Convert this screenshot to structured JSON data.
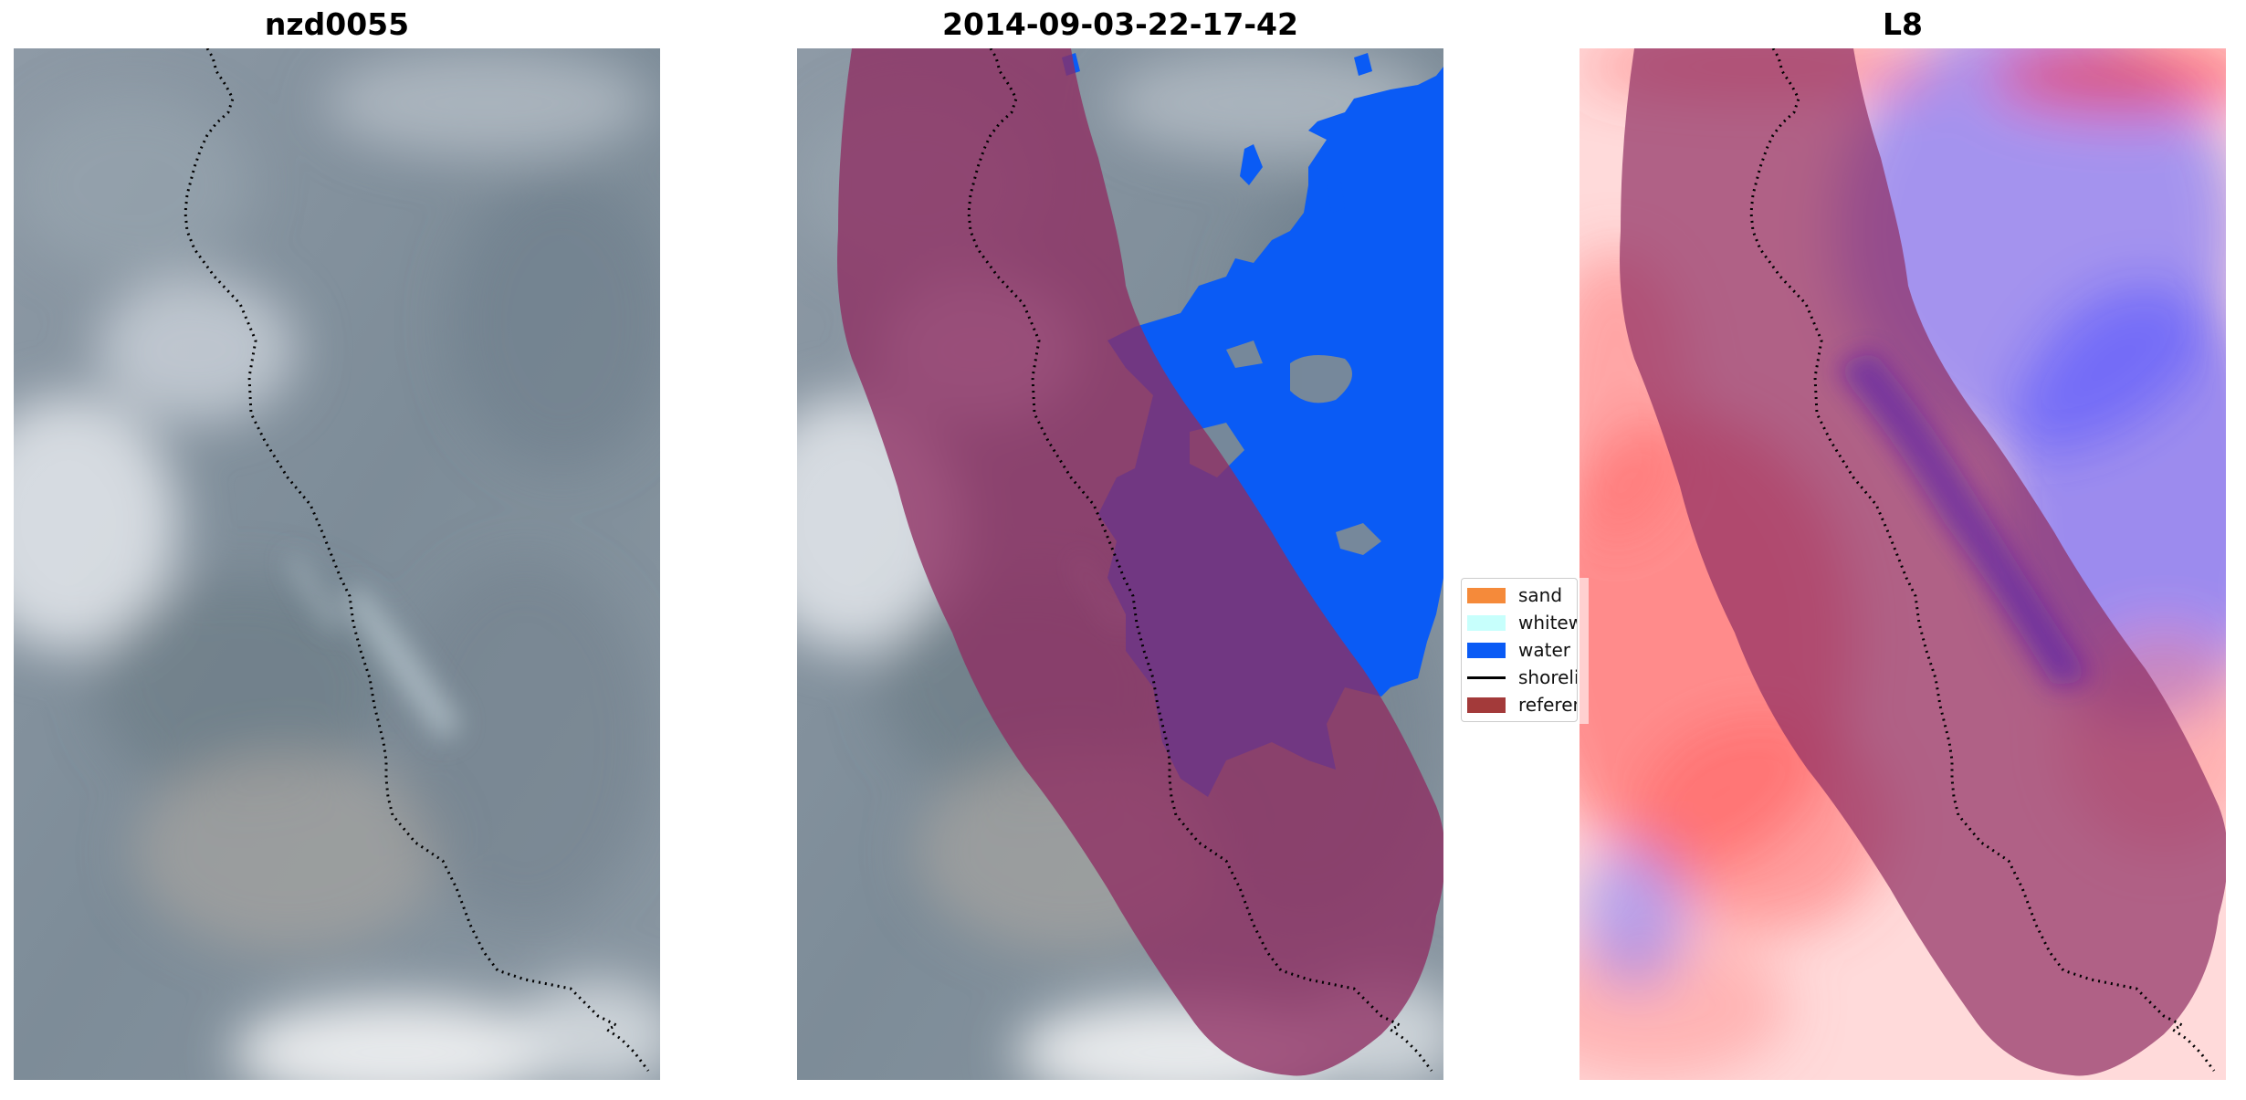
{
  "panels": [
    {
      "title": "nzd0055"
    },
    {
      "title": "2014-09-03-22-17-42"
    },
    {
      "title": "L8"
    }
  ],
  "legend": {
    "items": [
      {
        "label": "sand",
        "color": "#F58A3A",
        "kind": "patch"
      },
      {
        "label": "whitewater",
        "color": "#C7FFFC",
        "kind": "patch"
      },
      {
        "label": "water",
        "color": "#0A5BF5",
        "kind": "patch"
      },
      {
        "label": "shoreline",
        "color": "#000000",
        "kind": "line"
      },
      {
        "label": "reference shoreline buffer",
        "color": "#A33A3A",
        "kind": "patch"
      }
    ]
  },
  "colors": {
    "buffer_overlay": "#8E2D62",
    "water_class": "#0A5BF5",
    "shoreline": "#000000",
    "ndwi_positive": "#3333FF",
    "ndwi_negative": "#FF2A2A"
  }
}
